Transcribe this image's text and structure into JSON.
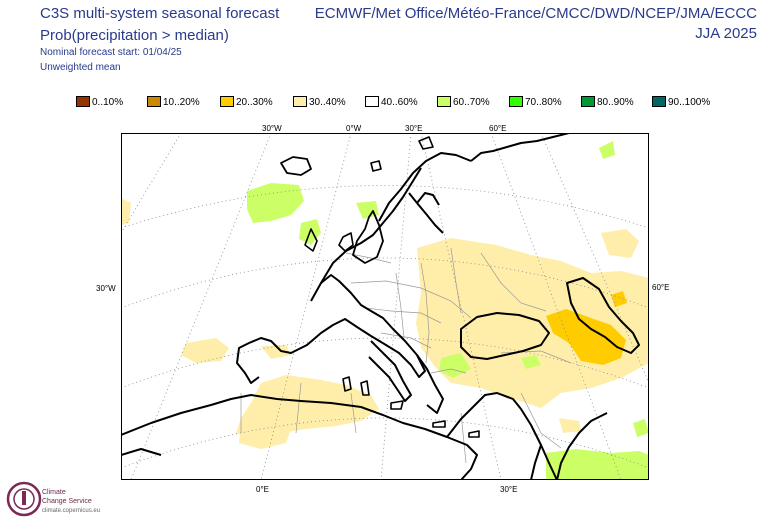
{
  "header": {
    "title": "C3S multi-system seasonal forecast",
    "subtitle": "Prob(precipitation > median)",
    "start_line": "Nominal forecast start: 01/04/25",
    "weighting": "Unweighted mean",
    "systems": "ECMWF/Met Office/Météo-France/CMCC/DWD/NCEP/JMA/ECCC",
    "season": "JJA 2025"
  },
  "legend": [
    {
      "label": "0..10%",
      "color": "#993300"
    },
    {
      "label": "10..20%",
      "color": "#cc8800"
    },
    {
      "label": "20..30%",
      "color": "#ffcc00"
    },
    {
      "label": "30..40%",
      "color": "#ffeeaa"
    },
    {
      "label": "40..60%",
      "color": "#ffffff"
    },
    {
      "label": "60..70%",
      "color": "#ccff66"
    },
    {
      "label": "70..80%",
      "color": "#33ff00"
    },
    {
      "label": "80..90%",
      "color": "#009933"
    },
    {
      "label": "90..100%",
      "color": "#006666"
    }
  ],
  "axis_labels": {
    "top": [
      "30°W",
      "0°W",
      "30°E",
      "60°E"
    ],
    "left": "30°W",
    "right": "60°E",
    "bottom": [
      "0°E",
      "30°E"
    ]
  },
  "logo": {
    "name_line1": "Climate",
    "name_line2": "Change Service",
    "url": "climate.copernicus.eu"
  }
}
